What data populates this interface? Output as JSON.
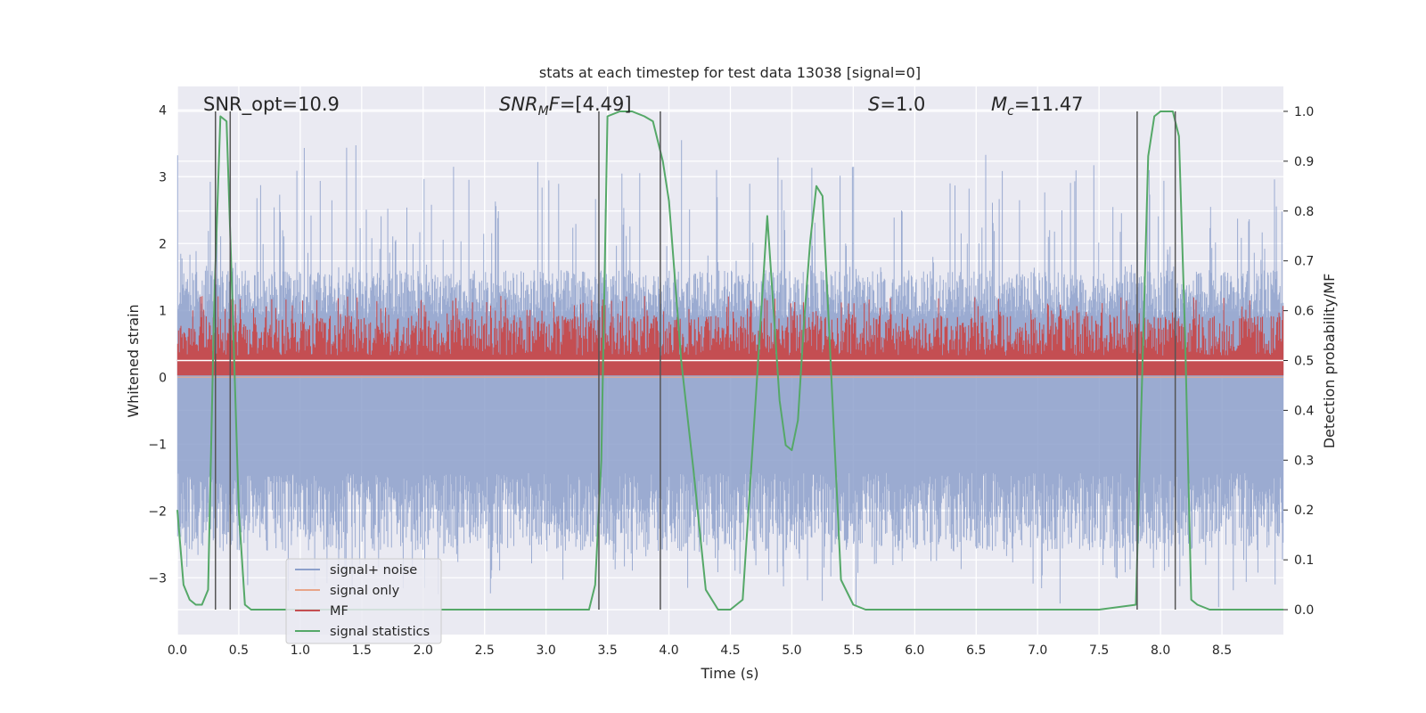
{
  "chart_data": {
    "type": "line",
    "title": "stats at each timestep for test data 13038 [signal=0]",
    "xlabel": "Time (s)",
    "ylabel": "Whitened strain",
    "y2label": "Detection probability/MF",
    "xlim": [
      0.0,
      9.0
    ],
    "ylim": [
      -3.85,
      4.35
    ],
    "y2lim": [
      -0.05,
      1.05
    ],
    "xticks": [
      "0.0",
      "0.5",
      "1.0",
      "1.5",
      "2.0",
      "2.5",
      "3.0",
      "3.5",
      "4.0",
      "4.5",
      "5.0",
      "5.5",
      "6.0",
      "6.5",
      "7.0",
      "7.5",
      "8.0",
      "8.5"
    ],
    "yticks": [
      "−3",
      "−2",
      "−1",
      "0",
      "1",
      "2",
      "3",
      "4"
    ],
    "y2ticks": [
      "0.0",
      "0.1",
      "0.2",
      "0.3",
      "0.4",
      "0.5",
      "0.6",
      "0.7",
      "0.8",
      "0.9",
      "1.0"
    ],
    "grid": true,
    "legend_position": "lower-left",
    "annotations": {
      "snr_opt": "SNR_opt=10.9",
      "snr_mf": "SNR_MF=[4.49]",
      "s": "S=1.0",
      "mc": "M_c=11.47"
    },
    "vertical_markers_x": [
      0.31,
      0.43,
      3.43,
      3.93,
      7.81,
      8.12
    ],
    "series": [
      {
        "name": "signal+ noise",
        "color": "#8da0cb",
        "style": "noise band",
        "amplitude_typical": 1.6,
        "amplitude_peak": 3.6
      },
      {
        "name": "signal only",
        "color": "#e8a589",
        "values_note": "flat near 0",
        "amplitude_typical": 0.0
      },
      {
        "name": "MF",
        "color": "#c44e52",
        "style": "noise band",
        "center": 0.5,
        "range": [
          0.47,
          0.63
        ]
      },
      {
        "name": "signal statistics",
        "color": "#55a868",
        "x": [
          0.0,
          0.05,
          0.1,
          0.15,
          0.2,
          0.25,
          0.3,
          0.35,
          0.4,
          0.45,
          0.5,
          0.55,
          0.6,
          0.7,
          1.0,
          1.5,
          2.0,
          2.5,
          3.0,
          3.2,
          3.35,
          3.4,
          3.45,
          3.5,
          3.6,
          3.7,
          3.8,
          3.87,
          3.95,
          4.0,
          4.1,
          4.2,
          4.3,
          4.4,
          4.45,
          4.5,
          4.6,
          4.7,
          4.8,
          4.9,
          4.95,
          5.0,
          5.05,
          5.1,
          5.15,
          5.2,
          5.25,
          5.3,
          5.4,
          5.5,
          5.6,
          6.0,
          7.0,
          7.5,
          7.8,
          7.9,
          7.95,
          8.0,
          8.05,
          8.1,
          8.15,
          8.2,
          8.25,
          8.3,
          8.4,
          9.0
        ],
        "values": [
          0.2,
          0.05,
          0.02,
          0.01,
          0.01,
          0.04,
          0.62,
          0.99,
          0.98,
          0.6,
          0.2,
          0.01,
          0.0,
          0.0,
          0.0,
          0.0,
          0.0,
          0.0,
          0.0,
          0.0,
          0.0,
          0.05,
          0.3,
          0.99,
          1.0,
          1.0,
          0.99,
          0.98,
          0.9,
          0.82,
          0.5,
          0.28,
          0.04,
          0.0,
          0.0,
          0.0,
          0.02,
          0.4,
          0.79,
          0.42,
          0.33,
          0.32,
          0.38,
          0.58,
          0.74,
          0.85,
          0.83,
          0.58,
          0.06,
          0.01,
          0.0,
          0.0,
          0.0,
          0.0,
          0.01,
          0.91,
          0.99,
          1.0,
          1.0,
          1.0,
          0.95,
          0.55,
          0.02,
          0.01,
          0.0,
          0.0
        ]
      }
    ]
  }
}
